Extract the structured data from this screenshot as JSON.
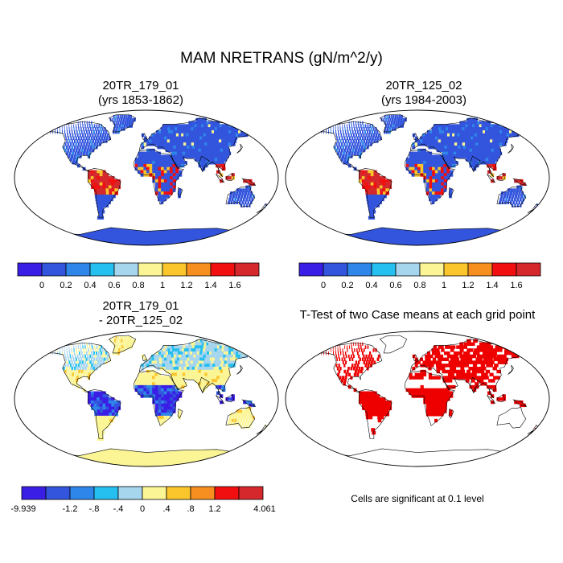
{
  "title": "MAM NRETRANS (gN/m^2/y)",
  "panels": [
    {
      "title_line1": "20TR_179_01",
      "title_line2": "(yrs 1853-1862)",
      "style": "abs"
    },
    {
      "title_line1": "20TR_125_02",
      "title_line2": "(yrs 1984-2003)",
      "style": "abs"
    },
    {
      "title_line1": "20TR_179_01",
      "title_line2": "- 20TR_125_02",
      "style": "diff"
    },
    {
      "title_line1": "T-Test of two Case means at each grid point",
      "title_line2": "",
      "style": "ttest"
    }
  ],
  "colorbar_abs": {
    "colors": [
      "#3a1ee6",
      "#3355dd",
      "#2f86ea",
      "#25bff0",
      "#a6d5ee",
      "#fbf595",
      "#fbc52c",
      "#f68f1f",
      "#f20f0f",
      "#d4282c"
    ],
    "labels": [
      "0",
      "0.2",
      "0.4",
      "0.6",
      "0.8",
      "1",
      "1.2",
      "1.4",
      "1.6"
    ]
  },
  "colorbar_diff": {
    "colors": [
      "#3a1ee6",
      "#3355dd",
      "#2f86ea",
      "#25bff0",
      "#a6d5ee",
      "#fbf595",
      "#fbc52c",
      "#f68f1f",
      "#f20f0f",
      "#d4282c"
    ],
    "labels": [
      "-9.939",
      "",
      "-1.2",
      "-.8",
      "-.4",
      "0",
      ".4",
      ".8",
      "1.2",
      "",
      "4.061"
    ]
  },
  "ttest_note": "Cells are significant at 0.1 level"
}
